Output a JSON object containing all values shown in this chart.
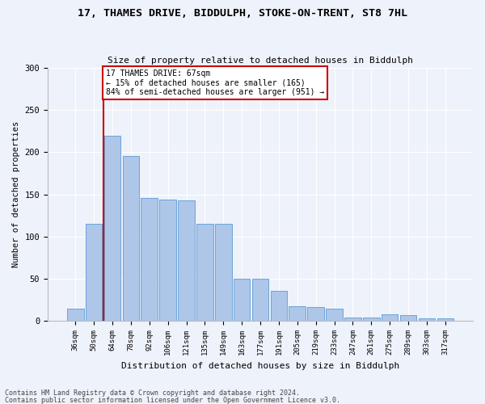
{
  "title_line1": "17, THAMES DRIVE, BIDDULPH, STOKE-ON-TRENT, ST8 7HL",
  "title_line2": "Size of property relative to detached houses in Biddulph",
  "xlabel": "Distribution of detached houses by size in Biddulph",
  "ylabel": "Number of detached properties",
  "categories": [
    "36sqm",
    "50sqm",
    "64sqm",
    "78sqm",
    "92sqm",
    "106sqm",
    "121sqm",
    "135sqm",
    "149sqm",
    "163sqm",
    "177sqm",
    "191sqm",
    "205sqm",
    "219sqm",
    "233sqm",
    "247sqm",
    "261sqm",
    "275sqm",
    "289sqm",
    "303sqm",
    "317sqm"
  ],
  "values": [
    15,
    115,
    220,
    196,
    146,
    144,
    143,
    115,
    115,
    50,
    50,
    36,
    17,
    16,
    15,
    4,
    4,
    8,
    7,
    3,
    3
  ],
  "bar_color": "#aec6e8",
  "bar_edge_color": "#5b9bd5",
  "vline_x_index": 2,
  "vline_color": "#cc0000",
  "annotation_text": "17 THAMES DRIVE: 67sqm\n← 15% of detached houses are smaller (165)\n84% of semi-detached houses are larger (951) →",
  "annotation_box_color": "#ffffff",
  "annotation_box_edge": "#cc0000",
  "ylim": [
    0,
    300
  ],
  "yticks": [
    0,
    50,
    100,
    150,
    200,
    250,
    300
  ],
  "footnote1": "Contains HM Land Registry data © Crown copyright and database right 2024.",
  "footnote2": "Contains public sector information licensed under the Open Government Licence v3.0.",
  "background_color": "#eef2fa",
  "plot_background": "#eef2fa"
}
